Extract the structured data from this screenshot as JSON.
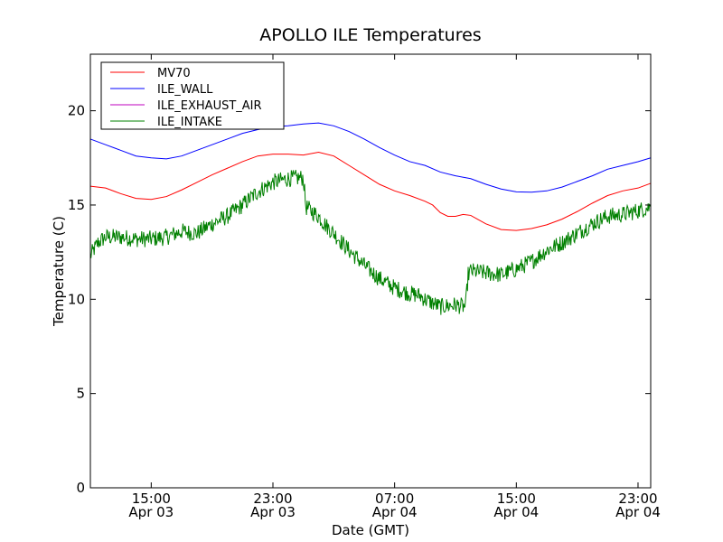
{
  "chart_data": {
    "type": "line",
    "title": "APOLLO ILE Temperatures",
    "xlabel": "Date (GMT)",
    "ylabel": "Temperature (C)",
    "x_unit": "hours",
    "xlim": [
      "2014-04-03 11:00",
      "2014-04-04 23:50"
    ],
    "ylim": [
      0,
      23
    ],
    "yticks": [
      0,
      5,
      10,
      15,
      20
    ],
    "xticks": [
      {
        "at": "2014-04-03 15:00",
        "time": "15:00",
        "date": "Apr 03"
      },
      {
        "at": "2014-04-03 23:00",
        "time": "23:00",
        "date": "Apr 03"
      },
      {
        "at": "2014-04-04 07:00",
        "time": "07:00",
        "date": "Apr 04"
      },
      {
        "at": "2014-04-04 15:00",
        "time": "15:00",
        "date": "Apr 04"
      },
      {
        "at": "2014-04-04 23:00",
        "time": "23:00",
        "date": "Apr 04"
      }
    ],
    "legend_position": "top-left",
    "series": [
      {
        "name": "MV70",
        "color": "#ff0000",
        "points": [
          [
            "2014-04-03 11:00",
            16.0
          ],
          [
            "2014-04-03 12:00",
            15.9
          ],
          [
            "2014-04-03 13:00",
            15.6
          ],
          [
            "2014-04-03 14:00",
            15.35
          ],
          [
            "2014-04-03 15:00",
            15.3
          ],
          [
            "2014-04-03 16:00",
            15.45
          ],
          [
            "2014-04-03 17:00",
            15.8
          ],
          [
            "2014-04-03 18:00",
            16.2
          ],
          [
            "2014-04-03 19:00",
            16.6
          ],
          [
            "2014-04-03 20:00",
            16.95
          ],
          [
            "2014-04-03 21:00",
            17.3
          ],
          [
            "2014-04-03 22:00",
            17.6
          ],
          [
            "2014-04-03 23:00",
            17.7
          ],
          [
            "2014-04-04 00:00",
            17.7
          ],
          [
            "2014-04-04 01:00",
            17.65
          ],
          [
            "2014-04-04 02:00",
            17.8
          ],
          [
            "2014-04-04 03:00",
            17.6
          ],
          [
            "2014-04-04 04:00",
            17.1
          ],
          [
            "2014-04-04 05:00",
            16.6
          ],
          [
            "2014-04-04 06:00",
            16.1
          ],
          [
            "2014-04-04 07:00",
            15.75
          ],
          [
            "2014-04-04 08:00",
            15.5
          ],
          [
            "2014-04-04 09:00",
            15.2
          ],
          [
            "2014-04-04 09:30",
            15.0
          ],
          [
            "2014-04-04 10:00",
            14.6
          ],
          [
            "2014-04-04 10:30",
            14.4
          ],
          [
            "2014-04-04 11:00",
            14.4
          ],
          [
            "2014-04-04 11:30",
            14.5
          ],
          [
            "2014-04-04 12:00",
            14.45
          ],
          [
            "2014-04-04 13:00",
            14.0
          ],
          [
            "2014-04-04 14:00",
            13.7
          ],
          [
            "2014-04-04 15:00",
            13.65
          ],
          [
            "2014-04-04 16:00",
            13.75
          ],
          [
            "2014-04-04 17:00",
            13.95
          ],
          [
            "2014-04-04 18:00",
            14.25
          ],
          [
            "2014-04-04 19:00",
            14.65
          ],
          [
            "2014-04-04 20:00",
            15.1
          ],
          [
            "2014-04-04 21:00",
            15.5
          ],
          [
            "2014-04-04 22:00",
            15.75
          ],
          [
            "2014-04-04 23:00",
            15.9
          ],
          [
            "2014-04-04 23:50",
            16.15
          ]
        ]
      },
      {
        "name": "ILE_WALL",
        "color": "#0000ff",
        "points": [
          [
            "2014-04-03 11:00",
            18.5
          ],
          [
            "2014-04-03 12:00",
            18.2
          ],
          [
            "2014-04-03 13:00",
            17.9
          ],
          [
            "2014-04-03 14:00",
            17.6
          ],
          [
            "2014-04-03 15:00",
            17.5
          ],
          [
            "2014-04-03 16:00",
            17.45
          ],
          [
            "2014-04-03 17:00",
            17.6
          ],
          [
            "2014-04-03 18:00",
            17.9
          ],
          [
            "2014-04-03 19:00",
            18.2
          ],
          [
            "2014-04-03 20:00",
            18.5
          ],
          [
            "2014-04-03 21:00",
            18.8
          ],
          [
            "2014-04-03 22:00",
            19.0
          ],
          [
            "2014-04-03 23:00",
            19.15
          ],
          [
            "2014-04-04 00:00",
            19.2
          ],
          [
            "2014-04-04 01:00",
            19.3
          ],
          [
            "2014-04-04 02:00",
            19.35
          ],
          [
            "2014-04-04 03:00",
            19.2
          ],
          [
            "2014-04-04 04:00",
            18.9
          ],
          [
            "2014-04-04 05:00",
            18.5
          ],
          [
            "2014-04-04 06:00",
            18.05
          ],
          [
            "2014-04-04 07:00",
            17.65
          ],
          [
            "2014-04-04 08:00",
            17.3
          ],
          [
            "2014-04-04 09:00",
            17.1
          ],
          [
            "2014-04-04 10:00",
            16.75
          ],
          [
            "2014-04-04 11:00",
            16.55
          ],
          [
            "2014-04-04 12:00",
            16.4
          ],
          [
            "2014-04-04 13:00",
            16.1
          ],
          [
            "2014-04-04 14:00",
            15.85
          ],
          [
            "2014-04-04 15:00",
            15.7
          ],
          [
            "2014-04-04 16:00",
            15.68
          ],
          [
            "2014-04-04 17:00",
            15.75
          ],
          [
            "2014-04-04 18:00",
            15.95
          ],
          [
            "2014-04-04 19:00",
            16.25
          ],
          [
            "2014-04-04 20:00",
            16.55
          ],
          [
            "2014-04-04 21:00",
            16.9
          ],
          [
            "2014-04-04 22:00",
            17.1
          ],
          [
            "2014-04-04 23:00",
            17.3
          ],
          [
            "2014-04-04 23:50",
            17.5
          ]
        ]
      },
      {
        "name": "ILE_EXHAUST_AIR",
        "color": "#bf00bf",
        "points": []
      },
      {
        "name": "ILE_INTAKE",
        "color": "#008000",
        "noisy": true,
        "points": [
          [
            "2014-04-03 11:00",
            12.3
          ],
          [
            "2014-04-03 11:30",
            13.0
          ],
          [
            "2014-04-03 12:00",
            13.3
          ],
          [
            "2014-04-03 13:00",
            13.3
          ],
          [
            "2014-04-03 14:00",
            13.2
          ],
          [
            "2014-04-03 15:00",
            13.2
          ],
          [
            "2014-04-03 16:00",
            13.3
          ],
          [
            "2014-04-03 17:00",
            13.6
          ],
          [
            "2014-04-03 18:00",
            13.5
          ],
          [
            "2014-04-03 19:00",
            14.0
          ],
          [
            "2014-04-03 20:00",
            14.4
          ],
          [
            "2014-04-03 21:00",
            15.0
          ],
          [
            "2014-04-03 22:00",
            15.7
          ],
          [
            "2014-04-03 23:00",
            16.2
          ],
          [
            "2014-04-04 00:00",
            16.4
          ],
          [
            "2014-04-04 01:00",
            16.45
          ],
          [
            "2014-04-04 01:10",
            14.9
          ],
          [
            "2014-04-04 02:00",
            14.4
          ],
          [
            "2014-04-04 02:30",
            13.9
          ],
          [
            "2014-04-04 03:00",
            13.5
          ],
          [
            "2014-04-04 04:00",
            12.6
          ],
          [
            "2014-04-04 05:00",
            11.8
          ],
          [
            "2014-04-04 06:00",
            11.1
          ],
          [
            "2014-04-04 07:00",
            10.6
          ],
          [
            "2014-04-04 08:00",
            10.3
          ],
          [
            "2014-04-04 08:40",
            10.2
          ],
          [
            "2014-04-04 09:00",
            10.0
          ],
          [
            "2014-04-04 10:00",
            9.6
          ],
          [
            "2014-04-04 11:00",
            9.7
          ],
          [
            "2014-04-04 11:40",
            9.6
          ],
          [
            "2014-04-04 11:50",
            11.3
          ],
          [
            "2014-04-04 12:00",
            11.5
          ],
          [
            "2014-04-04 13:00",
            11.4
          ],
          [
            "2014-04-04 14:00",
            11.3
          ],
          [
            "2014-04-04 15:00",
            11.6
          ],
          [
            "2014-04-04 16:00",
            12.0
          ],
          [
            "2014-04-04 17:00",
            12.6
          ],
          [
            "2014-04-04 18:00",
            13.0
          ],
          [
            "2014-04-04 19:00",
            13.5
          ],
          [
            "2014-04-04 20:00",
            14.0
          ],
          [
            "2014-04-04 21:00",
            14.4
          ],
          [
            "2014-04-04 22:00",
            14.5
          ],
          [
            "2014-04-04 23:00",
            14.7
          ],
          [
            "2014-04-04 23:50",
            14.9
          ]
        ]
      }
    ]
  }
}
